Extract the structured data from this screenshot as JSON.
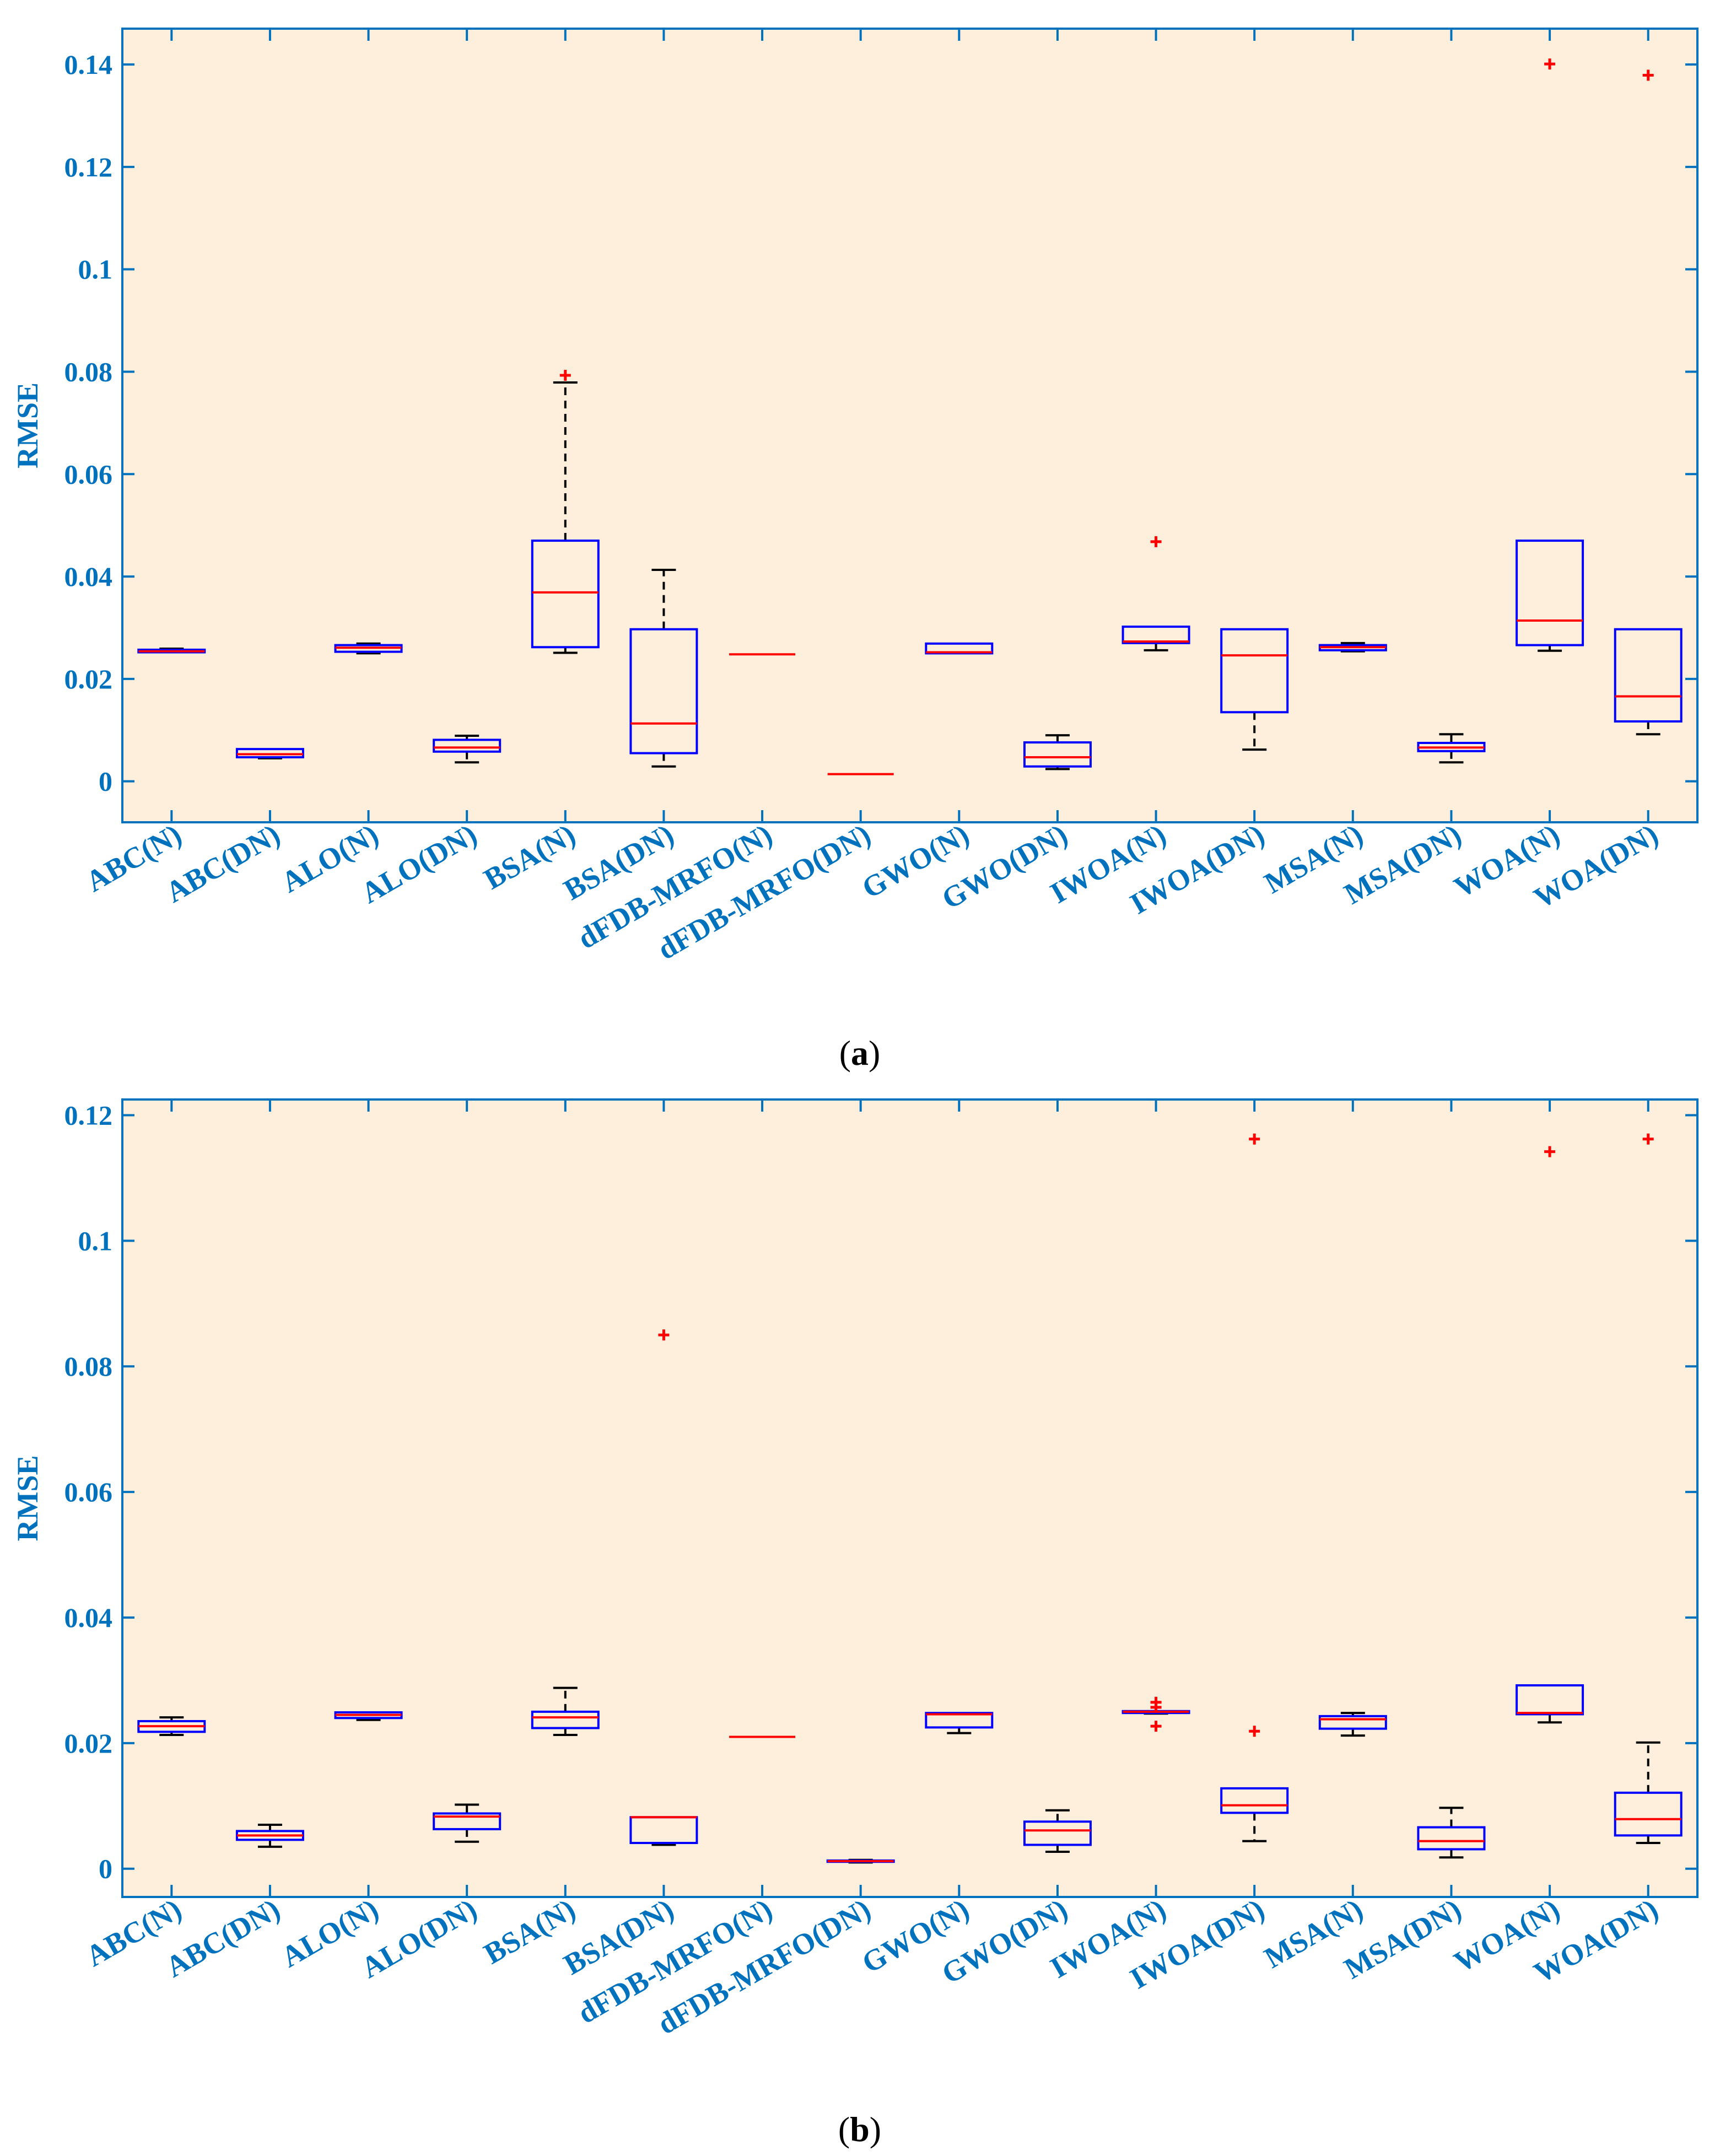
{
  "colors": {
    "plot_bg": "#FDEFDC",
    "axis": "#0072BD",
    "box": "#0000FF",
    "median": "#FF0000",
    "whisker": "#000000",
    "outlier": "#FF0000"
  },
  "chart_data": [
    {
      "type": "box",
      "panel": "a",
      "caption": "(a)",
      "caption_letter": "a",
      "ylabel": "RMSE",
      "ylim": [
        -0.008,
        0.147
      ],
      "yticks": [
        0,
        0.02,
        0.04,
        0.06,
        0.08,
        0.1,
        0.12,
        0.14
      ],
      "ytick_labels": [
        "0",
        "0.02",
        "0.04",
        "0.06",
        "0.08",
        "0.1",
        "0.12",
        "0.14"
      ],
      "categories": [
        "ABC(N)",
        "ABC(DN)",
        "ALO(N)",
        "ALO(DN)",
        "BSA(N)",
        "BSA(DN)",
        "dFDB-MRFO(N)",
        "dFDB-MRFO(DN)",
        "GWO(N)",
        "GWO(DN)",
        "IWOA(N)",
        "IWOA(DN)",
        "MSA(N)",
        "MSA(DN)",
        "WOA(N)",
        "WOA(DN)"
      ],
      "boxes": [
        {
          "whislo": 0.0251,
          "q1": 0.0252,
          "med": 0.0254,
          "q3": 0.0257,
          "whishi": 0.0259,
          "fliers": []
        },
        {
          "whislo": 0.0045,
          "q1": 0.0047,
          "med": 0.0053,
          "q3": 0.0063,
          "whishi": 0.0064,
          "fliers": []
        },
        {
          "whislo": 0.025,
          "q1": 0.0253,
          "med": 0.0261,
          "q3": 0.0266,
          "whishi": 0.0269,
          "fliers": []
        },
        {
          "whislo": 0.0037,
          "q1": 0.0058,
          "med": 0.0066,
          "q3": 0.0081,
          "whishi": 0.0089,
          "fliers": []
        },
        {
          "whislo": 0.0251,
          "q1": 0.0262,
          "med": 0.0369,
          "q3": 0.047,
          "whishi": 0.0779,
          "fliers": [
            0.0793
          ]
        },
        {
          "whislo": 0.0029,
          "q1": 0.0055,
          "med": 0.0113,
          "q3": 0.0297,
          "whishi": 0.0413,
          "fliers": []
        },
        {
          "whislo": 0.0248,
          "q1": 0.0248,
          "med": 0.0248,
          "q3": 0.0248,
          "whishi": 0.0248,
          "fliers": []
        },
        {
          "whislo": 0.0014,
          "q1": 0.0014,
          "med": 0.0014,
          "q3": 0.0014,
          "whishi": 0.0014,
          "fliers": []
        },
        {
          "whislo": 0.025,
          "q1": 0.025,
          "med": 0.0252,
          "q3": 0.0269,
          "whishi": 0.0269,
          "fliers": []
        },
        {
          "whislo": 0.0024,
          "q1": 0.0029,
          "med": 0.0047,
          "q3": 0.0076,
          "whishi": 0.009,
          "fliers": []
        },
        {
          "whislo": 0.0256,
          "q1": 0.027,
          "med": 0.0273,
          "q3": 0.0302,
          "whishi": 0.0302,
          "fliers": [
            0.0468
          ]
        },
        {
          "whislo": 0.0062,
          "q1": 0.0135,
          "med": 0.0246,
          "q3": 0.0297,
          "whishi": 0.0297,
          "fliers": []
        },
        {
          "whislo": 0.0254,
          "q1": 0.0256,
          "med": 0.0262,
          "q3": 0.0266,
          "whishi": 0.027,
          "fliers": []
        },
        {
          "whislo": 0.0037,
          "q1": 0.0059,
          "med": 0.0066,
          "q3": 0.0075,
          "whishi": 0.0092,
          "fliers": []
        },
        {
          "whislo": 0.0255,
          "q1": 0.0266,
          "med": 0.0314,
          "q3": 0.047,
          "whishi": 0.047,
          "fliers": [
            0.1401
          ]
        },
        {
          "whislo": 0.0092,
          "q1": 0.0117,
          "med": 0.0166,
          "q3": 0.0297,
          "whishi": 0.0297,
          "fliers": [
            0.1379
          ]
        }
      ]
    },
    {
      "type": "box",
      "panel": "b",
      "caption": "(b)",
      "caption_letter": "b",
      "ylabel": "RMSE",
      "ylim": [
        -0.0045,
        0.1225
      ],
      "yticks": [
        0,
        0.02,
        0.04,
        0.06,
        0.08,
        0.1,
        0.12
      ],
      "ytick_labels": [
        "0",
        "0.02",
        "0.04",
        "0.06",
        "0.08",
        "0.1",
        "0.12"
      ],
      "categories": [
        "ABC(N)",
        "ABC(DN)",
        "ALO(N)",
        "ALO(DN)",
        "BSA(N)",
        "BSA(DN)",
        "dFDB-MRFO(N)",
        "dFDB-MRFO(DN)",
        "GWO(N)",
        "GWO(DN)",
        "IWOA(N)",
        "IWOA(DN)",
        "MSA(N)",
        "MSA(DN)",
        "WOA(N)",
        "WOA(DN)"
      ],
      "boxes": [
        {
          "whislo": 0.0213,
          "q1": 0.0218,
          "med": 0.0227,
          "q3": 0.0235,
          "whishi": 0.0241,
          "fliers": []
        },
        {
          "whislo": 0.0035,
          "q1": 0.0046,
          "med": 0.0053,
          "q3": 0.006,
          "whishi": 0.007,
          "fliers": []
        },
        {
          "whislo": 0.0237,
          "q1": 0.024,
          "med": 0.0245,
          "q3": 0.0249,
          "whishi": 0.0249,
          "fliers": []
        },
        {
          "whislo": 0.0043,
          "q1": 0.0063,
          "med": 0.0083,
          "q3": 0.0088,
          "whishi": 0.0102,
          "fliers": []
        },
        {
          "whislo": 0.0213,
          "q1": 0.0224,
          "med": 0.0241,
          "q3": 0.025,
          "whishi": 0.0288,
          "fliers": []
        },
        {
          "whislo": 0.0038,
          "q1": 0.0041,
          "med": 0.0082,
          "q3": 0.0082,
          "whishi": 0.0082,
          "fliers": [
            0.085
          ]
        },
        {
          "whislo": 0.021,
          "q1": 0.021,
          "med": 0.021,
          "q3": 0.021,
          "whishi": 0.021,
          "fliers": []
        },
        {
          "whislo": 0.001,
          "q1": 0.0011,
          "med": 0.0012,
          "q3": 0.0013,
          "whishi": 0.0014,
          "fliers": []
        },
        {
          "whislo": 0.0216,
          "q1": 0.0225,
          "med": 0.0246,
          "q3": 0.0248,
          "whishi": 0.0248,
          "fliers": []
        },
        {
          "whislo": 0.0027,
          "q1": 0.0038,
          "med": 0.0061,
          "q3": 0.0075,
          "whishi": 0.0093,
          "fliers": []
        },
        {
          "whislo": 0.0247,
          "q1": 0.0248,
          "med": 0.025,
          "q3": 0.0251,
          "whishi": 0.0251,
          "fliers": [
            0.0227,
            0.0257,
            0.0265
          ]
        },
        {
          "whislo": 0.0044,
          "q1": 0.0089,
          "med": 0.0101,
          "q3": 0.0128,
          "whishi": 0.0128,
          "fliers": [
            0.0219,
            0.1162
          ]
        },
        {
          "whislo": 0.0212,
          "q1": 0.0223,
          "med": 0.0238,
          "q3": 0.0243,
          "whishi": 0.0248,
          "fliers": []
        },
        {
          "whislo": 0.0018,
          "q1": 0.0031,
          "med": 0.0044,
          "q3": 0.0066,
          "whishi": 0.0097,
          "fliers": []
        },
        {
          "whislo": 0.0233,
          "q1": 0.0246,
          "med": 0.0248,
          "q3": 0.0292,
          "whishi": 0.0292,
          "fliers": [
            0.1142
          ]
        },
        {
          "whislo": 0.0041,
          "q1": 0.0053,
          "med": 0.0079,
          "q3": 0.0121,
          "whishi": 0.0201,
          "fliers": [
            0.1162
          ]
        }
      ]
    }
  ]
}
